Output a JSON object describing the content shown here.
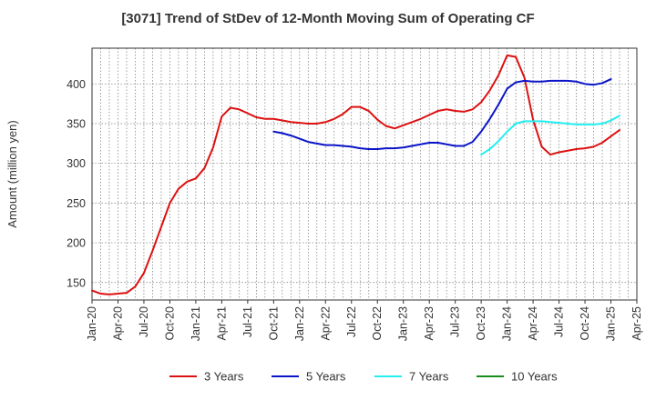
{
  "chart_data": {
    "type": "line",
    "title": "[3071]  Trend of StDev of 12-Month Moving Sum of Operating CF",
    "xlabel": "",
    "ylabel": "Amount (million yen)",
    "x_tick_labels": [
      "Jan-20",
      "Apr-20",
      "Jul-20",
      "Oct-20",
      "Jan-21",
      "Apr-21",
      "Jul-21",
      "Oct-21",
      "Jan-22",
      "Apr-22",
      "Jul-22",
      "Oct-22",
      "Jan-23",
      "Apr-23",
      "Jul-23",
      "Oct-23",
      "Jan-24",
      "Apr-24",
      "Jul-24",
      "Oct-24",
      "Jan-25",
      "Apr-25"
    ],
    "y_ticks": [
      150,
      200,
      250,
      300,
      350,
      400
    ],
    "xlim": [
      "2020-01",
      "2025-04"
    ],
    "ylim": [
      128,
      445
    ],
    "grid": true,
    "legend_position": "bottom",
    "series": [
      {
        "name": "3 Years",
        "color": "#dd1111",
        "points": [
          [
            "2020-01",
            140
          ],
          [
            "2020-02",
            136
          ],
          [
            "2020-03",
            135
          ],
          [
            "2020-04",
            136
          ],
          [
            "2020-05",
            137
          ],
          [
            "2020-06",
            145
          ],
          [
            "2020-07",
            162
          ],
          [
            "2020-08",
            190
          ],
          [
            "2020-09",
            220
          ],
          [
            "2020-10",
            250
          ],
          [
            "2020-11",
            268
          ],
          [
            "2020-12",
            277
          ],
          [
            "2021-01",
            281
          ],
          [
            "2021-02",
            294
          ],
          [
            "2021-03",
            320
          ],
          [
            "2021-04",
            359
          ],
          [
            "2021-05",
            370
          ],
          [
            "2021-06",
            368
          ],
          [
            "2021-07",
            363
          ],
          [
            "2021-08",
            358
          ],
          [
            "2021-09",
            356
          ],
          [
            "2021-10",
            356
          ],
          [
            "2021-11",
            354
          ],
          [
            "2021-12",
            352
          ],
          [
            "2022-01",
            351
          ],
          [
            "2022-02",
            350
          ],
          [
            "2022-03",
            350
          ],
          [
            "2022-04",
            352
          ],
          [
            "2022-05",
            356
          ],
          [
            "2022-06",
            362
          ],
          [
            "2022-07",
            371
          ],
          [
            "2022-08",
            371
          ],
          [
            "2022-09",
            366
          ],
          [
            "2022-10",
            355
          ],
          [
            "2022-11",
            347
          ],
          [
            "2022-12",
            344
          ],
          [
            "2023-01",
            348
          ],
          [
            "2023-02",
            352
          ],
          [
            "2023-03",
            356
          ],
          [
            "2023-04",
            361
          ],
          [
            "2023-05",
            366
          ],
          [
            "2023-06",
            368
          ],
          [
            "2023-07",
            366
          ],
          [
            "2023-08",
            365
          ],
          [
            "2023-09",
            368
          ],
          [
            "2023-10",
            377
          ],
          [
            "2023-11",
            392
          ],
          [
            "2023-12",
            411
          ],
          [
            "2024-01",
            436
          ],
          [
            "2024-02",
            434
          ],
          [
            "2024-03",
            408
          ],
          [
            "2024-04",
            355
          ],
          [
            "2024-05",
            321
          ],
          [
            "2024-06",
            311
          ],
          [
            "2024-07",
            314
          ],
          [
            "2024-08",
            316
          ],
          [
            "2024-09",
            318
          ],
          [
            "2024-10",
            319
          ],
          [
            "2024-11",
            321
          ],
          [
            "2024-12",
            326
          ],
          [
            "2025-01",
            334
          ],
          [
            "2025-02",
            342
          ]
        ]
      },
      {
        "name": "5 Years",
        "color": "#0a14c8",
        "points": [
          [
            "2021-10",
            340
          ],
          [
            "2021-11",
            338
          ],
          [
            "2021-12",
            335
          ],
          [
            "2022-01",
            331
          ],
          [
            "2022-02",
            327
          ],
          [
            "2022-03",
            325
          ],
          [
            "2022-04",
            323
          ],
          [
            "2022-05",
            323
          ],
          [
            "2022-06",
            322
          ],
          [
            "2022-07",
            321
          ],
          [
            "2022-08",
            319
          ],
          [
            "2022-09",
            318
          ],
          [
            "2022-10",
            318
          ],
          [
            "2022-11",
            319
          ],
          [
            "2022-12",
            319
          ],
          [
            "2023-01",
            320
          ],
          [
            "2023-02",
            322
          ],
          [
            "2023-03",
            324
          ],
          [
            "2023-04",
            326
          ],
          [
            "2023-05",
            326
          ],
          [
            "2023-06",
            324
          ],
          [
            "2023-07",
            322
          ],
          [
            "2023-08",
            322
          ],
          [
            "2023-09",
            327
          ],
          [
            "2023-10",
            340
          ],
          [
            "2023-11",
            356
          ],
          [
            "2023-12",
            374
          ],
          [
            "2024-01",
            394
          ],
          [
            "2024-02",
            402
          ],
          [
            "2024-03",
            404
          ],
          [
            "2024-04",
            403
          ],
          [
            "2024-05",
            403
          ],
          [
            "2024-06",
            404
          ],
          [
            "2024-07",
            404
          ],
          [
            "2024-08",
            404
          ],
          [
            "2024-09",
            403
          ],
          [
            "2024-10",
            400
          ],
          [
            "2024-11",
            399
          ],
          [
            "2024-12",
            401
          ],
          [
            "2025-01",
            406
          ]
        ]
      },
      {
        "name": "7 Years",
        "color": "#22eef0",
        "points": [
          [
            "2023-10",
            311
          ],
          [
            "2023-11",
            318
          ],
          [
            "2023-12",
            328
          ],
          [
            "2024-01",
            340
          ],
          [
            "2024-02",
            350
          ],
          [
            "2024-03",
            353
          ],
          [
            "2024-04",
            353
          ],
          [
            "2024-05",
            353
          ],
          [
            "2024-06",
            352
          ],
          [
            "2024-07",
            351
          ],
          [
            "2024-08",
            350
          ],
          [
            "2024-09",
            349
          ],
          [
            "2024-10",
            349
          ],
          [
            "2024-11",
            349
          ],
          [
            "2024-12",
            350
          ],
          [
            "2025-01",
            354
          ],
          [
            "2025-02",
            360
          ]
        ]
      },
      {
        "name": "10 Years",
        "color": "#1a8c1a",
        "points": []
      }
    ]
  }
}
